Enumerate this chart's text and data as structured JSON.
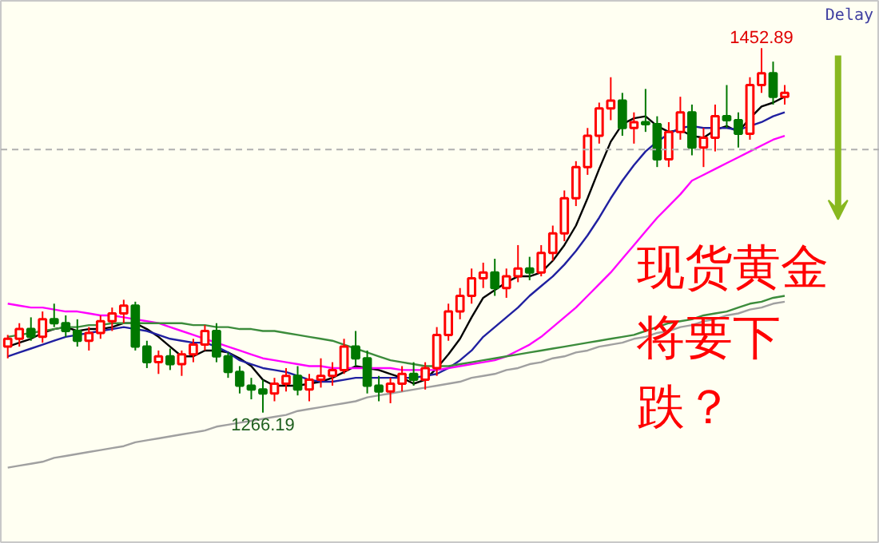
{
  "chart_data": {
    "type": "candlestick",
    "tick_labels": false,
    "categories": [
      null,
      null,
      null,
      null,
      null,
      null,
      null,
      null,
      null,
      null,
      null,
      null,
      null,
      null,
      null,
      null,
      null,
      null,
      null,
      null,
      null,
      null,
      null,
      null,
      null,
      null,
      null,
      null,
      null,
      null,
      null,
      null,
      null,
      null,
      null,
      null,
      null,
      null,
      null,
      null,
      null,
      null,
      null,
      null,
      null,
      null,
      null,
      null,
      null,
      null,
      null,
      null,
      null,
      null,
      null,
      null,
      null,
      null,
      null,
      null,
      null,
      null,
      null,
      null,
      null,
      null,
      null,
      null
    ],
    "ohlc": [
      [
        1300,
        1306,
        1294,
        1304
      ],
      [
        1304,
        1312,
        1300,
        1309
      ],
      [
        1309,
        1315,
        1303,
        1305
      ],
      [
        1305,
        1318,
        1302,
        1314
      ],
      [
        1314,
        1322,
        1310,
        1312
      ],
      [
        1312,
        1316,
        1305,
        1308
      ],
      [
        1308,
        1314,
        1300,
        1303
      ],
      [
        1303,
        1310,
        1298,
        1307
      ],
      [
        1307,
        1316,
        1304,
        1313
      ],
      [
        1313,
        1320,
        1308,
        1317
      ],
      [
        1317,
        1324,
        1312,
        1321
      ],
      [
        1321,
        1323,
        1298,
        1300
      ],
      [
        1300,
        1303,
        1289,
        1292
      ],
      [
        1292,
        1298,
        1286,
        1295
      ],
      [
        1295,
        1299,
        1288,
        1291
      ],
      [
        1291,
        1298,
        1285,
        1296
      ],
      [
        1296,
        1304,
        1292,
        1301
      ],
      [
        1301,
        1311,
        1298,
        1308
      ],
      [
        1308,
        1312,
        1292,
        1295
      ],
      [
        1295,
        1297,
        1284,
        1287
      ],
      [
        1287,
        1290,
        1276,
        1280
      ],
      [
        1280,
        1284,
        1273,
        1278
      ],
      [
        1278,
        1283,
        1266.19,
        1276
      ],
      [
        1276,
        1284,
        1272,
        1281
      ],
      [
        1281,
        1289,
        1277,
        1285
      ],
      [
        1285,
        1290,
        1275,
        1278
      ],
      [
        1278,
        1286,
        1272,
        1283
      ],
      [
        1283,
        1294,
        1279,
        1285
      ],
      [
        1285,
        1292,
        1280,
        1288
      ],
      [
        1288,
        1304,
        1286,
        1300
      ],
      [
        1300,
        1308,
        1290,
        1294
      ],
      [
        1294,
        1298,
        1276,
        1280
      ],
      [
        1280,
        1285,
        1272,
        1277
      ],
      [
        1277,
        1284,
        1271,
        1281
      ],
      [
        1281,
        1290,
        1277,
        1286
      ],
      [
        1286,
        1292,
        1280,
        1283
      ],
      [
        1283,
        1292,
        1278,
        1289
      ],
      [
        1289,
        1310,
        1285,
        1306
      ],
      [
        1306,
        1322,
        1303,
        1318
      ],
      [
        1318,
        1330,
        1314,
        1326
      ],
      [
        1326,
        1340,
        1322,
        1335
      ],
      [
        1335,
        1343,
        1330,
        1338
      ],
      [
        1338,
        1345,
        1326,
        1330
      ],
      [
        1330,
        1340,
        1325,
        1336
      ],
      [
        1336,
        1352,
        1333,
        1340
      ],
      [
        1340,
        1346,
        1334,
        1338
      ],
      [
        1338,
        1352,
        1336,
        1348
      ],
      [
        1348,
        1362,
        1344,
        1358
      ],
      [
        1358,
        1380,
        1354,
        1376
      ],
      [
        1376,
        1395,
        1372,
        1392
      ],
      [
        1392,
        1412,
        1388,
        1408
      ],
      [
        1408,
        1425,
        1404,
        1422
      ],
      [
        1422,
        1438,
        1416,
        1426
      ],
      [
        1426,
        1430,
        1408,
        1412
      ],
      [
        1412,
        1420,
        1404,
        1415
      ],
      [
        1415,
        1432,
        1410,
        1414
      ],
      [
        1414,
        1418,
        1392,
        1396
      ],
      [
        1396,
        1415,
        1392,
        1410
      ],
      [
        1410,
        1428,
        1406,
        1420
      ],
      [
        1420,
        1424,
        1398,
        1402
      ],
      [
        1402,
        1412,
        1392,
        1407
      ],
      [
        1407,
        1424,
        1400,
        1418
      ],
      [
        1418,
        1434,
        1412,
        1416
      ],
      [
        1416,
        1420,
        1402,
        1409
      ],
      [
        1409,
        1438,
        1406,
        1434
      ],
      [
        1434,
        1452.89,
        1430,
        1440
      ],
      [
        1440,
        1446,
        1424,
        1428
      ],
      [
        1428,
        1434,
        1424,
        1430
      ]
    ],
    "colors": [
      "#ff0000",
      "#ff0000",
      "#007800",
      "#ff0000",
      "#007800",
      "#007800",
      "#007800",
      "#ff0000",
      "#ff0000",
      "#ff0000",
      "#ff0000",
      "#007800",
      "#007800",
      "#ff0000",
      "#007800",
      "#ff0000",
      "#ff0000",
      "#ff0000",
      "#007800",
      "#007800",
      "#007800",
      "#007800",
      "#007800",
      "#ff0000",
      "#ff0000",
      "#007800",
      "#ff0000",
      "#ff0000",
      "#ff0000",
      "#ff0000",
      "#007800",
      "#007800",
      "#007800",
      "#ff0000",
      "#ff0000",
      "#007800",
      "#ff0000",
      "#ff0000",
      "#ff0000",
      "#ff0000",
      "#ff0000",
      "#ff0000",
      "#007800",
      "#ff0000",
      "#ff0000",
      "#007800",
      "#ff0000",
      "#ff0000",
      "#ff0000",
      "#ff0000",
      "#ff0000",
      "#ff0000",
      "#ff0000",
      "#007800",
      "#ff0000",
      "#007800",
      "#007800",
      "#ff0000",
      "#ff0000",
      "#007800",
      "#ff0000",
      "#ff0000",
      "#007800",
      "#007800",
      "#ff0000",
      "#ff0000",
      "#007800",
      "#ff0000"
    ],
    "series": [
      {
        "type": "line",
        "color": "#000000",
        "values": [
          1300,
          1302,
          1304,
          1307,
          1309,
          1310,
          1308,
          1309,
          1309,
          1310,
          1312,
          1312,
          1309,
          1305,
          1300,
          1295,
          1295,
          1298,
          1298,
          1297,
          1294,
          1290,
          1283,
          1280,
          1280,
          1280,
          1281,
          1282,
          1284,
          1287,
          1290,
          1289,
          1288,
          1286,
          1284,
          1281,
          1283,
          1289,
          1296,
          1304,
          1315,
          1325,
          1329,
          1333,
          1336,
          1336,
          1338,
          1344,
          1352,
          1362,
          1376,
          1391,
          1405,
          1414,
          1417,
          1418,
          1413,
          1410,
          1411,
          1408,
          1407,
          1411,
          1413,
          1410,
          1417,
          1423,
          1425,
          1428
        ]
      },
      {
        "type": "line",
        "color": "#2020a0",
        "values": [
          1295,
          1297,
          1299,
          1301,
          1303,
          1305,
          1306,
          1307,
          1308,
          1309,
          1310,
          1309,
          1308,
          1306,
          1304,
          1303,
          1302,
          1302,
          1300,
          1297,
          1293,
          1291,
          1289,
          1288,
          1287,
          1285,
          1283,
          1282,
          1282,
          1283,
          1284,
          1284,
          1284,
          1284,
          1284,
          1284,
          1285,
          1286,
          1289,
          1293,
          1298,
          1305,
          1310,
          1315,
          1320,
          1326,
          1331,
          1336,
          1342,
          1349,
          1357,
          1366,
          1376,
          1385,
          1393,
          1400,
          1405,
          1409,
          1412,
          1413,
          1412,
          1412,
          1412,
          1411,
          1413,
          1415,
          1418,
          1420
        ]
      },
      {
        "type": "line",
        "color": "#ff00ff",
        "values": [
          1322,
          1321,
          1320,
          1320,
          1319,
          1318,
          1318,
          1317,
          1316,
          1316,
          1315,
          1314,
          1313,
          1312,
          1310,
          1308,
          1306,
          1304,
          1302,
          1300,
          1298,
          1296,
          1294,
          1293,
          1292,
          1291,
          1290,
          1290,
          1289,
          1289,
          1289,
          1289,
          1289,
          1289,
          1288,
          1288,
          1288,
          1288,
          1289,
          1290,
          1291,
          1292,
          1293,
          1295,
          1298,
          1301,
          1305,
          1310,
          1315,
          1320,
          1326,
          1332,
          1338,
          1345,
          1352,
          1359,
          1366,
          1372,
          1378,
          1385,
          1388,
          1391,
          1394,
          1397,
          1400,
          1403,
          1406,
          1408
        ]
      },
      {
        "type": "line",
        "color": "#3c8c3c",
        "values": [
          1305,
          1306,
          1307,
          1308,
          1309,
          1310,
          1310,
          1311,
          1311,
          1312,
          1312,
          1312,
          1312,
          1312,
          1312,
          1312,
          1311,
          1311,
          1310,
          1310,
          1309,
          1309,
          1308,
          1308,
          1307,
          1306,
          1305,
          1304,
          1303,
          1301,
          1299,
          1297,
          1295,
          1293,
          1292,
          1291,
          1290,
          1290,
          1290,
          1291,
          1292,
          1293,
          1294,
          1295,
          1296,
          1297,
          1298,
          1299,
          1300,
          1301,
          1302,
          1303,
          1304,
          1305,
          1306,
          1308,
          1310,
          1312,
          1313,
          1314,
          1316,
          1317,
          1318,
          1320,
          1322,
          1323,
          1325,
          1326
        ]
      },
      {
        "type": "line",
        "color": "#a0a0a0",
        "values": [
          1238,
          1239,
          1240,
          1241,
          1243,
          1244,
          1245,
          1246,
          1247,
          1248,
          1249,
          1251,
          1252,
          1253,
          1254,
          1255,
          1256,
          1257,
          1259,
          1260,
          1261,
          1262,
          1263,
          1264,
          1265,
          1267,
          1268,
          1269,
          1270,
          1271,
          1272,
          1274,
          1275,
          1276,
          1277,
          1278,
          1279,
          1280,
          1281,
          1282,
          1284,
          1285,
          1286,
          1288,
          1289,
          1291,
          1292,
          1294,
          1295,
          1297,
          1298,
          1300,
          1301,
          1302,
          1304,
          1305,
          1307,
          1308,
          1310,
          1311,
          1313,
          1314,
          1316,
          1317,
          1319,
          1320,
          1322,
          1323
        ]
      }
    ],
    "ref_lines": [
      {
        "axis": "y",
        "value": 1401,
        "color": "#b0b0b0",
        "line_style": "dashed"
      }
    ],
    "annotations": [
      {
        "text": "1452.89",
        "y": 1452.89
      },
      {
        "text": "1266.19",
        "y": 1266.19
      },
      "Delay",
      "现货黄金将要下跌？"
    ]
  }
}
